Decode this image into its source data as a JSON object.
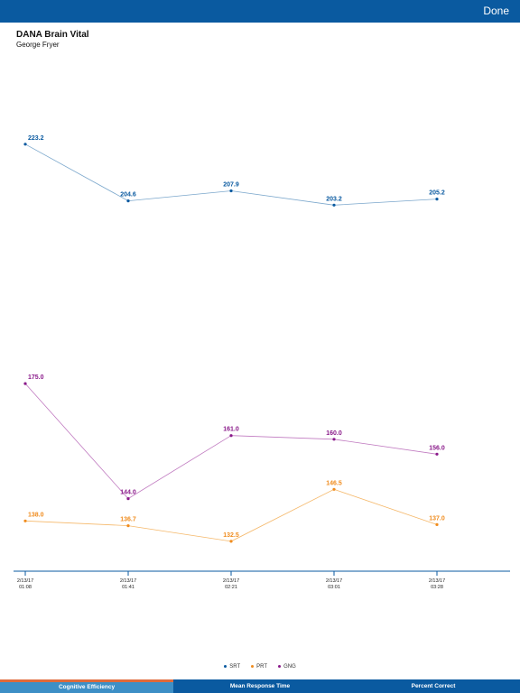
{
  "toolbar": {
    "done_label": "Done"
  },
  "header": {
    "title": "DANA Brain Vital",
    "subtitle": "George Fryer"
  },
  "legend": [
    {
      "label": "SRT",
      "color": "#0a5aa0"
    },
    {
      "label": "PRT",
      "color": "#f08c1e"
    },
    {
      "label": "GNG",
      "color": "#8a1a8a"
    }
  ],
  "tabs": [
    {
      "label": "Cognitive Efficiency",
      "active": true
    },
    {
      "label": "Mean Response Time",
      "active": false
    },
    {
      "label": "Percent Correct",
      "active": false
    }
  ],
  "chart_data": [
    {
      "type": "line",
      "categories": [
        "2/13/17\n01:08",
        "2/13/17\n01:41",
        "2/13/17\n02:21",
        "2/13/17\n03:01",
        "2/13/17\n03:28"
      ],
      "series": [
        {
          "name": "SRT",
          "color": "#0a5aa0",
          "line_color": "#7ba7cc",
          "values": [
            223.2,
            204.6,
            207.9,
            203.2,
            205.2
          ],
          "labels": [
            "223.2",
            "204.6",
            "207.9",
            "203.2",
            "205.2"
          ]
        }
      ],
      "ylim": [
        195,
        235
      ]
    },
    {
      "type": "line",
      "categories": [
        "2/13/17\n01:08",
        "2/13/17\n01:41",
        "2/13/17\n02:21",
        "2/13/17\n03:01",
        "2/13/17\n03:28"
      ],
      "series": [
        {
          "name": "GNG",
          "color": "#8a1a8a",
          "line_color": "#c07ac0",
          "values": [
            175.0,
            144.0,
            161.0,
            160.0,
            156.0
          ],
          "labels": [
            "175.0",
            "144.0",
            "161.0",
            "160.0",
            "156.0"
          ]
        },
        {
          "name": "PRT",
          "color": "#f08c1e",
          "line_color": "#f5b86a",
          "values": [
            138.0,
            136.7,
            132.5,
            146.5,
            137.0
          ],
          "labels": [
            "138.0",
            "136.7",
            "132.5",
            "146.5",
            "137.0"
          ]
        }
      ],
      "ylim": [
        124.7,
        188.4
      ]
    }
  ]
}
